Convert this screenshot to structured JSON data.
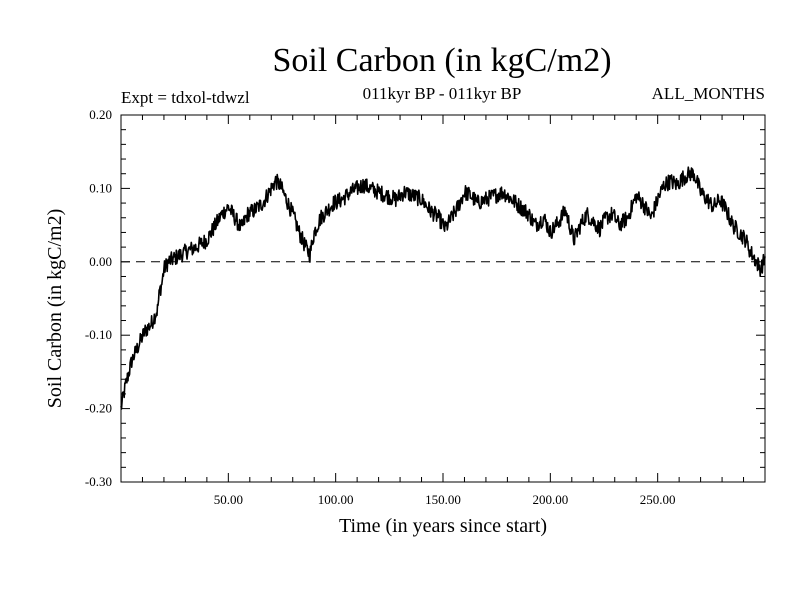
{
  "header": {
    "title": "Soil Carbon (in kgC/m2)",
    "experiment": "Expt = tdxol-tdwzl",
    "period": "011kyr BP - 011kyr BP",
    "months": "ALL_MONTHS"
  },
  "chart_data": {
    "type": "line",
    "xlabel": "Time (in years since start)",
    "ylabel": "Soil Carbon (in kgC/m2)",
    "xlim": [
      0,
      300
    ],
    "ylim": [
      -0.3,
      0.2
    ],
    "xticks": [
      50,
      100,
      150,
      200,
      250
    ],
    "xtick_labels": [
      "50.00",
      "100.00",
      "150.00",
      "200.00",
      "250.00"
    ],
    "yticks": [
      -0.3,
      -0.2,
      -0.1,
      0.0,
      0.1,
      0.2
    ],
    "ytick_labels": [
      "-0.30",
      "-0.20",
      "-0.10",
      "0.00",
      "0.10",
      "0.20"
    ],
    "reference_line": 0.0,
    "grid": false,
    "series": [
      {
        "x": [
          0,
          2,
          5,
          8,
          11,
          14,
          17,
          18,
          19,
          20,
          22,
          25,
          28,
          31,
          35,
          40,
          44,
          47,
          50,
          53,
          56,
          59,
          62,
          66,
          69,
          72,
          74,
          77,
          80,
          83,
          86,
          88,
          90,
          93,
          96,
          99,
          103,
          107,
          110,
          113,
          116,
          120,
          124,
          128,
          132,
          136,
          140,
          144,
          148,
          151,
          154,
          157,
          160,
          163,
          166,
          170,
          174,
          178,
          182,
          186,
          190,
          193,
          197,
          200,
          204,
          207,
          211,
          214,
          217,
          220,
          223,
          226,
          229,
          232,
          236,
          240,
          243,
          247,
          250,
          253,
          256,
          259,
          262,
          265,
          267,
          270,
          273,
          276,
          279,
          282,
          285,
          288,
          291,
          293,
          296,
          298,
          300
        ],
        "y": [
          -0.2,
          -0.17,
          -0.135,
          -0.115,
          -0.095,
          -0.085,
          -0.065,
          -0.04,
          -0.03,
          -0.01,
          0.0,
          0.005,
          0.01,
          0.015,
          0.02,
          0.03,
          0.05,
          0.065,
          0.075,
          0.06,
          0.045,
          0.065,
          0.07,
          0.08,
          0.095,
          0.11,
          0.105,
          0.085,
          0.065,
          0.04,
          0.02,
          0.01,
          0.04,
          0.06,
          0.07,
          0.08,
          0.085,
          0.095,
          0.1,
          0.105,
          0.1,
          0.095,
          0.09,
          0.085,
          0.095,
          0.09,
          0.085,
          0.07,
          0.06,
          0.045,
          0.06,
          0.075,
          0.095,
          0.09,
          0.08,
          0.085,
          0.09,
          0.095,
          0.085,
          0.075,
          0.065,
          0.05,
          0.06,
          0.04,
          0.055,
          0.07,
          0.03,
          0.05,
          0.065,
          0.055,
          0.045,
          0.06,
          0.065,
          0.05,
          0.06,
          0.09,
          0.08,
          0.06,
          0.085,
          0.105,
          0.11,
          0.105,
          0.115,
          0.12,
          0.12,
          0.095,
          0.085,
          0.075,
          0.085,
          0.07,
          0.05,
          0.04,
          0.03,
          0.015,
          0.0,
          -0.01,
          0.005
        ]
      }
    ]
  }
}
